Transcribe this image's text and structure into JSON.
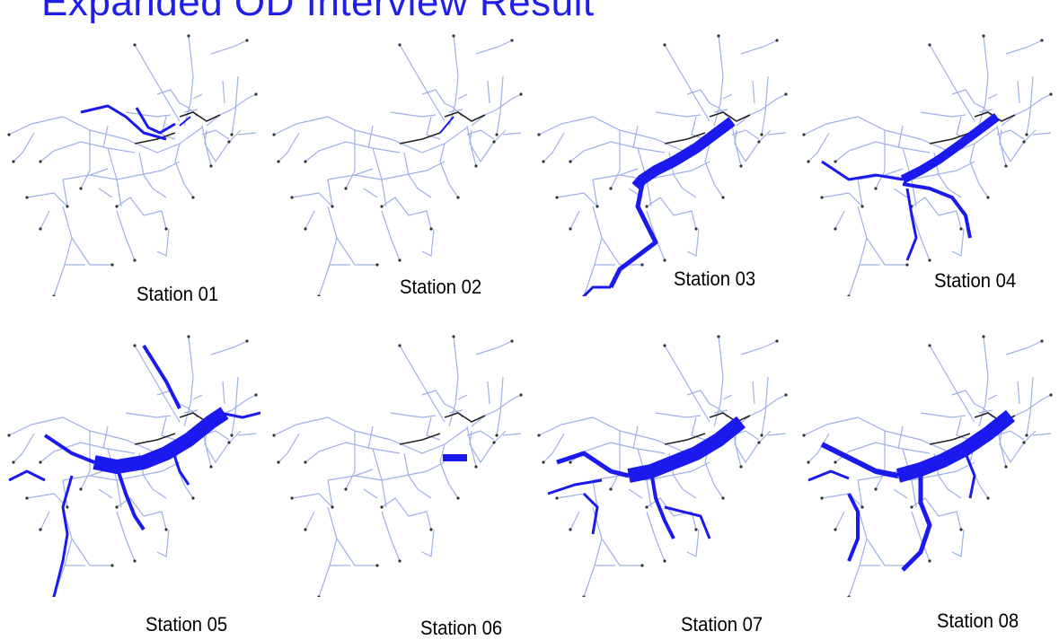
{
  "title": "Expanded OD Interview Result",
  "panels": [
    {
      "label": "Station 01",
      "highlight_color": "#1a1aee",
      "network_color": "#9fb0e6"
    },
    {
      "label": "Station 02",
      "highlight_color": "#1a1aee",
      "network_color": "#9fb0e6"
    },
    {
      "label": "Station 03",
      "highlight_color": "#1a1aee",
      "network_color": "#9fb0e6"
    },
    {
      "label": "Station 04",
      "highlight_color": "#1a1aee",
      "network_color": "#9fb0e6"
    },
    {
      "label": "Station 05",
      "highlight_color": "#1a1aee",
      "network_color": "#9fb0e6"
    },
    {
      "label": "Station 06",
      "highlight_color": "#1a1aee",
      "network_color": "#9fb0e6"
    },
    {
      "label": "Station 07",
      "highlight_color": "#1a1aee",
      "network_color": "#9fb0e6"
    },
    {
      "label": "Station 08",
      "highlight_color": "#1a1aee",
      "network_color": "#9fb0e6"
    }
  ]
}
